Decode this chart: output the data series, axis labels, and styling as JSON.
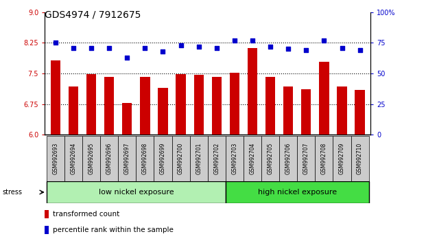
{
  "title": "GDS4974 / 7912675",
  "samples": [
    "GSM992693",
    "GSM992694",
    "GSM992695",
    "GSM992696",
    "GSM992697",
    "GSM992698",
    "GSM992699",
    "GSM992700",
    "GSM992701",
    "GSM992702",
    "GSM992703",
    "GSM992704",
    "GSM992705",
    "GSM992706",
    "GSM992707",
    "GSM992708",
    "GSM992709",
    "GSM992710"
  ],
  "bar_values": [
    7.82,
    7.18,
    7.48,
    7.42,
    6.78,
    7.42,
    7.15,
    7.48,
    7.46,
    7.42,
    7.52,
    8.12,
    7.42,
    7.18,
    7.12,
    7.78,
    7.18,
    7.1
  ],
  "dot_values": [
    75,
    71,
    71,
    71,
    63,
    71,
    68,
    73,
    72,
    71,
    77,
    77,
    72,
    70,
    69,
    77,
    71,
    69
  ],
  "bar_color": "#cc0000",
  "dot_color": "#0000cc",
  "bar_baseline": 6.0,
  "left_ylim": [
    6.0,
    9.0
  ],
  "right_ylim": [
    0,
    100
  ],
  "left_yticks": [
    6.0,
    6.75,
    7.5,
    8.25,
    9.0
  ],
  "right_yticks": [
    0,
    25,
    50,
    75,
    100
  ],
  "right_yticklabels": [
    "0",
    "25",
    "50",
    "75",
    "100%"
  ],
  "hlines": [
    6.75,
    7.5,
    8.25
  ],
  "group1_label": "low nickel exposure",
  "group2_label": "high nickel exposure",
  "group1_count": 10,
  "group1_color": "#b2f0b2",
  "group2_color": "#44dd44",
  "stress_label": "stress",
  "legend_bar_label": "transformed count",
  "legend_dot_label": "percentile rank within the sample",
  "title_fontsize": 10,
  "tick_fontsize": 7,
  "bar_width": 0.55,
  "label_box_color": "#cccccc",
  "background_color": "#ffffff"
}
